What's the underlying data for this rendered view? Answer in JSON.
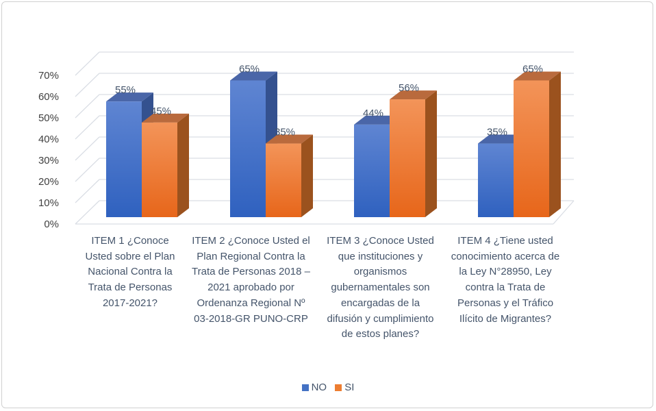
{
  "chart_data": {
    "type": "bar",
    "style": "3d-clustered-column",
    "categories": [
      "ITEM 1 ¿Conoce Usted sobre el Plan Nacional Contra la Trata de Personas 2017-2021?",
      "ITEM 2 ¿Conoce Usted el Plan Regional Contra la Trata de Personas 2018 – 2021 aprobado por Ordenanza Regional Nº 03-2018-GR PUNO-CRP",
      "ITEM 3 ¿Conoce Usted que instituciones y organismos gubernamentales son encargadas de la difusión y cumplimiento de estos planes?",
      "ITEM 4 ¿Tiene usted conocimiento acerca de la Ley N°28950, Ley contra la Trata de Personas y el Tráfico Ilícito de Migrantes?"
    ],
    "series": [
      {
        "name": "NO",
        "values": [
          55,
          65,
          44,
          35
        ],
        "labels": [
          "55%",
          "65%",
          "44%",
          "35%"
        ],
        "color": "#4472c4"
      },
      {
        "name": "SI",
        "values": [
          45,
          35,
          56,
          65
        ],
        "labels": [
          "45%",
          "35%",
          "56%",
          "65%"
        ],
        "color": "#ed7d31"
      }
    ],
    "yticks": [
      "0%",
      "10%",
      "20%",
      "30%",
      "40%",
      "50%",
      "60%",
      "70%"
    ],
    "ylim": [
      0,
      70
    ],
    "grid": true,
    "legend": "bottom",
    "title": "",
    "xlabel": "",
    "ylabel": ""
  }
}
